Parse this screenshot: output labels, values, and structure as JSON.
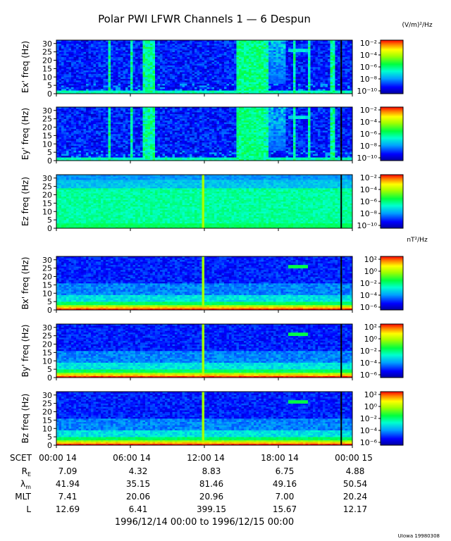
{
  "chart_data": {
    "type": "heatmap",
    "title": "Polar PWI LFWR Channels 1 — 6 Despun",
    "footer": "1996/12/14 00:00 to 1996/12/15 00:00",
    "credit": "UIowa 19980308",
    "ylim": [
      0,
      32
    ],
    "y_ticks": [
      "0",
      "5",
      "10",
      "15",
      "20",
      "25",
      "30"
    ],
    "x_tick_labels": [
      "00:00 14",
      "06:00 14",
      "12:00 14",
      "18:00 14",
      "00:00 15"
    ],
    "x_ticks_hours": [
      0,
      6,
      12,
      18,
      24
    ],
    "e_unit": "(V/m)²/Hz",
    "b_unit": "nT²/Hz",
    "e_cbar": {
      "ticks": [
        "10⁻²",
        "10⁻⁴",
        "10⁻⁶",
        "10⁻⁸",
        "10⁻¹⁰"
      ]
    },
    "b_cbar": {
      "ticks": [
        "10²",
        "10⁰",
        "10⁻²",
        "10⁻⁴",
        "10⁻⁶"
      ]
    },
    "panels": [
      {
        "ylabel": "Ex' freq (Hz)",
        "kind": "E_perp"
      },
      {
        "ylabel": "Ey' freq (Hz)",
        "kind": "E_perp"
      },
      {
        "ylabel": "Ez freq (Hz)",
        "kind": "E_par"
      },
      {
        "ylabel": "Bx' freq (Hz)",
        "kind": "B"
      },
      {
        "ylabel": "By' freq (Hz)",
        "kind": "B"
      },
      {
        "ylabel": "Bz freq (Hz)",
        "kind": "B"
      }
    ],
    "ephemeris": {
      "scet_label": "SCET",
      "rows": [
        {
          "label": "R",
          "sub": "E",
          "values": [
            "7.09",
            "4.32",
            "8.83",
            "6.75",
            "4.88"
          ]
        },
        {
          "label": "λ",
          "sub": "m",
          "values": [
            "41.94",
            "35.15",
            "81.46",
            "49.16",
            "50.54"
          ]
        },
        {
          "label": "MLT",
          "sub": "",
          "values": [
            "7.41",
            "20.06",
            "20.96",
            "7.00",
            "20.24"
          ]
        },
        {
          "label": "L",
          "sub": "",
          "values": [
            "12.69",
            "6.41",
            "399.15",
            "15.67",
            "12.17"
          ]
        }
      ]
    }
  }
}
